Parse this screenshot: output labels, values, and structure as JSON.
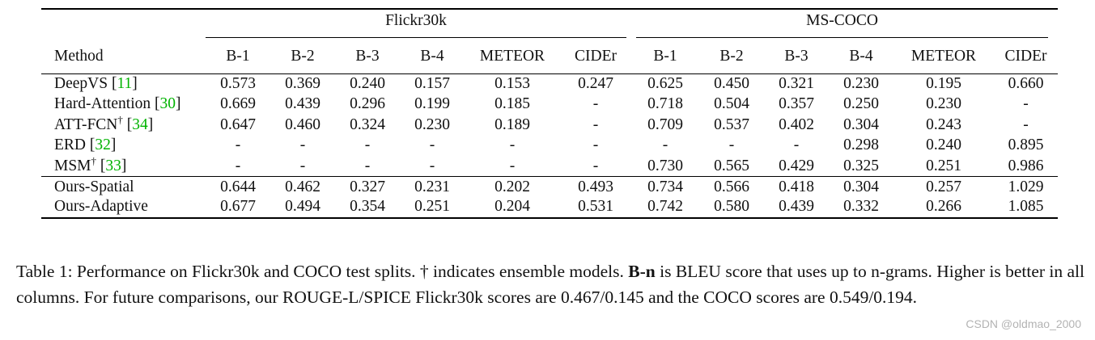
{
  "table": {
    "group_headers": {
      "flickr": "Flickr30k",
      "coco": "MS-COCO"
    },
    "method_header": "Method",
    "metric_headers": {
      "flickr": [
        "B-1",
        "B-2",
        "B-3",
        "B-4",
        "METEOR",
        "CIDEr"
      ],
      "coco": [
        "B-1",
        "B-2",
        "B-3",
        "B-4",
        "METEOR",
        "CIDEr"
      ]
    },
    "rows": [
      {
        "name": "DeepVS",
        "dagger": "",
        "ref": "11",
        "flickr": [
          "0.573",
          "0.369",
          "0.240",
          "0.157",
          "0.153",
          "0.247"
        ],
        "coco": [
          "0.625",
          "0.450",
          "0.321",
          "0.230",
          "0.195",
          "0.660"
        ]
      },
      {
        "name": "Hard-Attention",
        "dagger": "",
        "ref": "30",
        "flickr": [
          "0.669",
          "0.439",
          "0.296",
          "0.199",
          "0.185",
          "-"
        ],
        "coco": [
          "0.718",
          "0.504",
          "0.357",
          "0.250",
          "0.230",
          "-"
        ]
      },
      {
        "name": "ATT-FCN",
        "dagger": "†",
        "ref": "34",
        "flickr": [
          "0.647",
          "0.460",
          "0.324",
          "0.230",
          "0.189",
          "-"
        ],
        "coco": [
          "0.709",
          "0.537",
          "0.402",
          "0.304",
          "0.243",
          "-"
        ]
      },
      {
        "name": "ERD",
        "dagger": "",
        "ref": "32",
        "flickr": [
          "-",
          "-",
          "-",
          "-",
          "-",
          "-"
        ],
        "coco": [
          "-",
          "-",
          "-",
          "0.298",
          "0.240",
          "0.895"
        ]
      },
      {
        "name": "MSM",
        "dagger": "†",
        "ref": "33",
        "flickr": [
          "-",
          "-",
          "-",
          "-",
          "-",
          "-"
        ],
        "coco": [
          "0.730",
          "0.565",
          "0.429",
          "0.325",
          "0.251",
          "0.986"
        ]
      }
    ],
    "ours_rows": [
      {
        "name": "Ours-Spatial",
        "flickr": [
          "0.644",
          "0.462",
          "0.327",
          "0.231",
          "0.202",
          "0.493"
        ],
        "coco": [
          "0.734",
          "0.566",
          "0.418",
          "0.304",
          "0.257",
          "1.029"
        ]
      },
      {
        "name": "Ours-Adaptive",
        "flickr": [
          "0.677",
          "0.494",
          "0.354",
          "0.251",
          "0.204",
          "0.531"
        ],
        "coco": [
          "0.742",
          "0.580",
          "0.439",
          "0.332",
          "0.266",
          "1.085"
        ]
      }
    ]
  },
  "caption": {
    "p1": "Table 1: Performance on Flickr30k and COCO test splits. † indicates ensemble models. ",
    "bold": "B-n",
    "p2": " is BLEU score that uses up to n-grams. Higher is better in all columns. For future comparisons, our ROUGE-L/SPICE Flickr30k scores are 0.467/0.145 and the COCO scores are 0.549/0.194."
  },
  "watermark": "CSDN @oldmao_2000"
}
